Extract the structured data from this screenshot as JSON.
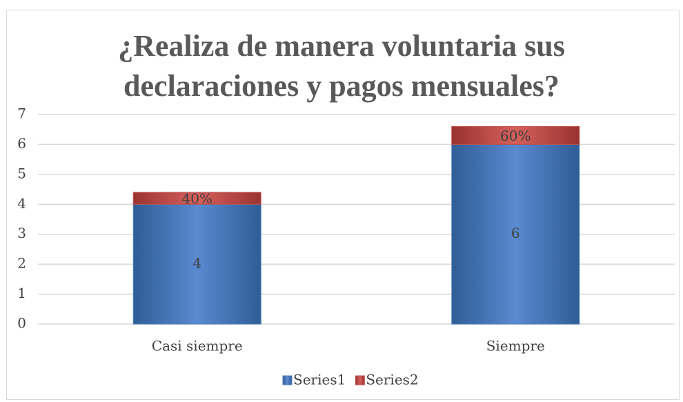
{
  "chart_data": {
    "type": "stacked_bar",
    "title": "¿Realiza de manera voluntaria sus declaraciones y pagos mensuales?",
    "categories": [
      "Casi siempre",
      "Siempre"
    ],
    "series": [
      {
        "name": "Series1",
        "color": "#4f81bd",
        "values": [
          4,
          6
        ]
      },
      {
        "name": "Series2",
        "color": "#c0504d",
        "values": [
          0.4,
          0.6
        ],
        "value_labels": [
          "40%",
          "60%"
        ]
      }
    ],
    "ylim": [
      0,
      7
    ],
    "yticks": [
      0,
      1,
      2,
      3,
      4,
      5,
      6,
      7
    ],
    "grid": true,
    "legend": "bottom"
  }
}
